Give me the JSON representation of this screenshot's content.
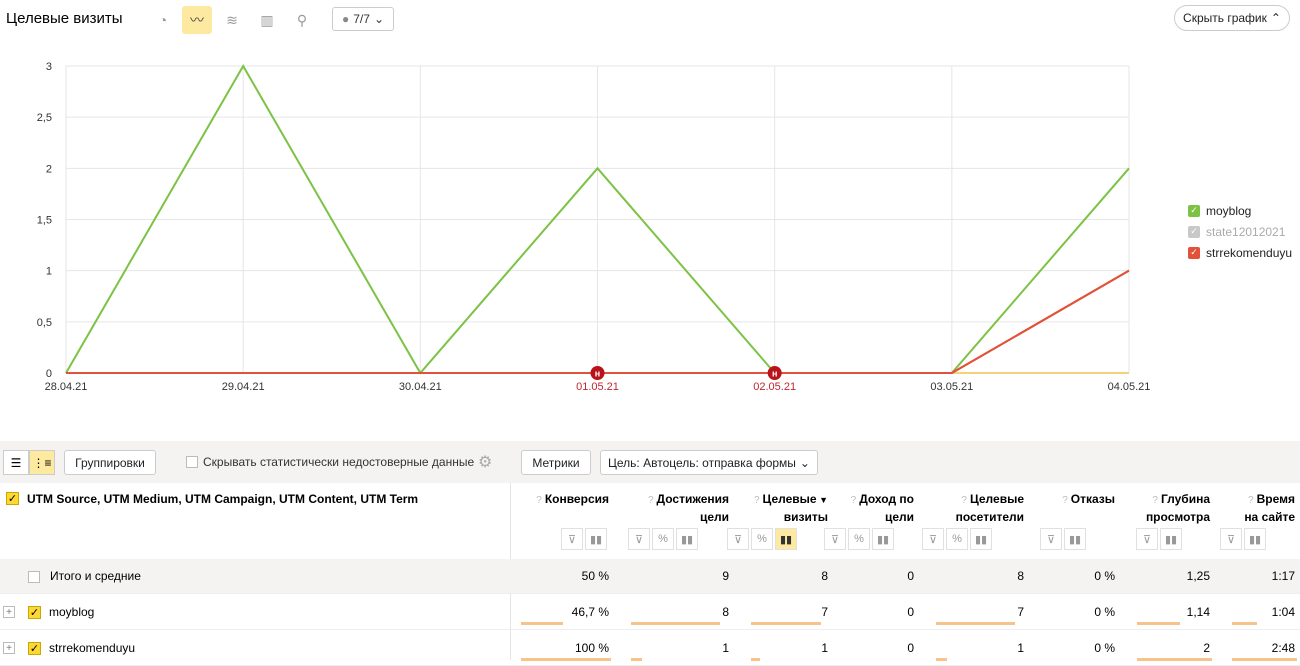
{
  "header": {
    "title": "Целевые визиты",
    "comments_count": "7/7",
    "hide_chart_label": "Скрыть график"
  },
  "legend": [
    {
      "label": "moyblog",
      "color": "#7cc245",
      "checked": true
    },
    {
      "label": "state12012021",
      "color": "#c8c8c8",
      "checked": true
    },
    {
      "label": "strrekomenduyu",
      "color": "#e2523a",
      "checked": true
    }
  ],
  "chart_data": {
    "type": "line",
    "x": [
      "28.04.21",
      "29.04.21",
      "30.04.21",
      "01.05.21",
      "02.05.21",
      "03.05.21",
      "04.05.21"
    ],
    "holiday_labels": [
      "01.05.21",
      "02.05.21"
    ],
    "holiday_marker": "н",
    "y_ticks": [
      "0",
      "0,5",
      "1",
      "1,5",
      "2",
      "2,5",
      "3"
    ],
    "ylim": [
      0,
      3
    ],
    "grid": true,
    "legend_position": "right",
    "series": [
      {
        "name": "moyblog",
        "color": "#7cc245",
        "values": [
          0,
          3,
          0,
          2,
          0,
          0,
          2
        ]
      },
      {
        "name": "state12012021",
        "color": "#f2d27a",
        "values": [
          0,
          0,
          0,
          0,
          0,
          0,
          0
        ]
      },
      {
        "name": "strrekomenduyu",
        "color": "#e2523a",
        "values": [
          0,
          0,
          0,
          0,
          0,
          0,
          1
        ]
      }
    ]
  },
  "toolbar": {
    "groupings_label": "Группировки",
    "hide_unreliable_label": "Скрывать статистически недостоверные данные",
    "metrics_label": "Метрики",
    "goal_label": "Цель: Автоцель: отправка формы"
  },
  "table": {
    "dimension_title": "UTM Source, UTM Medium, UTM Campaign, UTM Content, UTM Term",
    "columns": [
      {
        "label1": "Конверсия",
        "label2": ""
      },
      {
        "label1": "Достижения",
        "label2": "цели"
      },
      {
        "label1": "Целевые",
        "label2": "визиты",
        "sorted": "▼"
      },
      {
        "label1": "Доход по",
        "label2": "цели"
      },
      {
        "label1": "Целевые",
        "label2": "посетители"
      },
      {
        "label1": "Отказы",
        "label2": ""
      },
      {
        "label1": "Глубина",
        "label2": "просмотра"
      },
      {
        "label1": "Время",
        "label2": "на сайте"
      }
    ],
    "total": {
      "label": "Итого и средние",
      "values": [
        "50 %",
        "9",
        "8",
        "0",
        "8",
        "0 %",
        "1,25",
        "1:17"
      ]
    },
    "rows": [
      {
        "label": "moyblog",
        "values": [
          "46,7 %",
          "8",
          "7",
          "0",
          "7",
          "0 %",
          "1,14",
          "1:04"
        ],
        "fill": [
          0.47,
          0.89,
          0.88,
          0,
          0.88,
          0,
          0.57,
          0.39
        ]
      },
      {
        "label": "strrekomenduyu",
        "values": [
          "100 %",
          "1",
          "1",
          "0",
          "1",
          "0 %",
          "2",
          "2:48"
        ],
        "fill": [
          1.0,
          0.11,
          0.12,
          0,
          0.12,
          0,
          1.0,
          1.0
        ]
      }
    ]
  }
}
